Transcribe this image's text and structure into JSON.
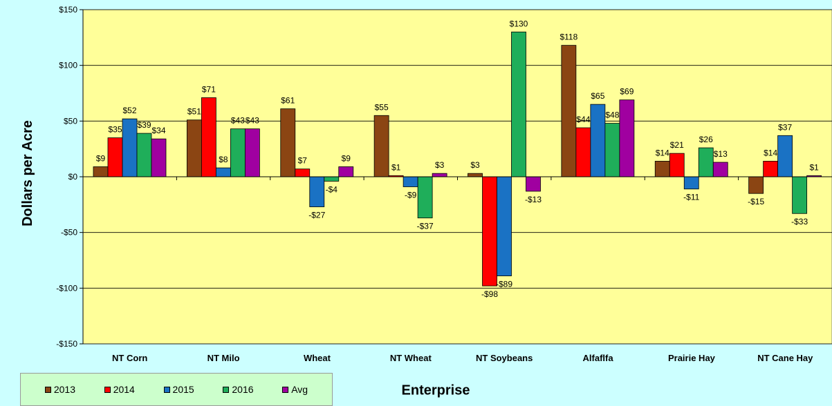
{
  "chart_data": {
    "type": "bar",
    "categories": [
      "NT Corn",
      "NT Milo",
      "Wheat",
      "NT Wheat",
      "NT Soybeans",
      "Alfaflfa",
      "Prairie Hay",
      "NT Cane Hay"
    ],
    "series": [
      {
        "name": "2013",
        "color": "#8b4513",
        "values": [
          9,
          51,
          61,
          55,
          3,
          118,
          14,
          -15
        ]
      },
      {
        "name": "2014",
        "color": "#ff0000",
        "values": [
          35,
          71,
          7,
          1,
          -98,
          44,
          21,
          14
        ]
      },
      {
        "name": "2015",
        "color": "#1a72c4",
        "values": [
          52,
          8,
          -27,
          -9,
          -89,
          65,
          -11,
          37
        ]
      },
      {
        "name": "2016",
        "color": "#1fae5a",
        "values": [
          39,
          43,
          -4,
          -37,
          130,
          48,
          26,
          -33
        ]
      },
      {
        "name": "Avg",
        "color": "#a000a0",
        "values": [
          34,
          43,
          9,
          3,
          -13,
          69,
          13,
          1
        ]
      }
    ],
    "data_labels": [
      [
        "$9",
        "$51",
        "$61",
        "$55",
        "$3",
        "$118",
        "$14",
        "-$15"
      ],
      [
        "$35",
        "$71",
        "$7",
        "$1",
        "-$98",
        "$44",
        "$21",
        "$14"
      ],
      [
        "$52",
        "$8",
        "-$27",
        "-$9",
        "-$89",
        "$65",
        "-$11",
        "$37"
      ],
      [
        "$39",
        "$43",
        "-$4",
        "-$37",
        "$130",
        "$48",
        "$26",
        "-$33"
      ],
      [
        "$34",
        "$43",
        "$9",
        "$3",
        "-$13",
        "$69",
        "$13",
        "$1"
      ]
    ],
    "yticks": [
      150,
      100,
      50,
      0,
      -50,
      -100,
      -150
    ],
    "ytick_labels": [
      "$150",
      "$100",
      "$50",
      "$0",
      "-$50",
      "-$100",
      "-$150"
    ],
    "ylim": [
      -150,
      150
    ],
    "xlabel": "Enterprise",
    "ylabel": "Dollars per Acre",
    "grid": true,
    "legend_position": "bottom-left",
    "plot_background": "#ffff99",
    "page_background": "#ccffff"
  }
}
